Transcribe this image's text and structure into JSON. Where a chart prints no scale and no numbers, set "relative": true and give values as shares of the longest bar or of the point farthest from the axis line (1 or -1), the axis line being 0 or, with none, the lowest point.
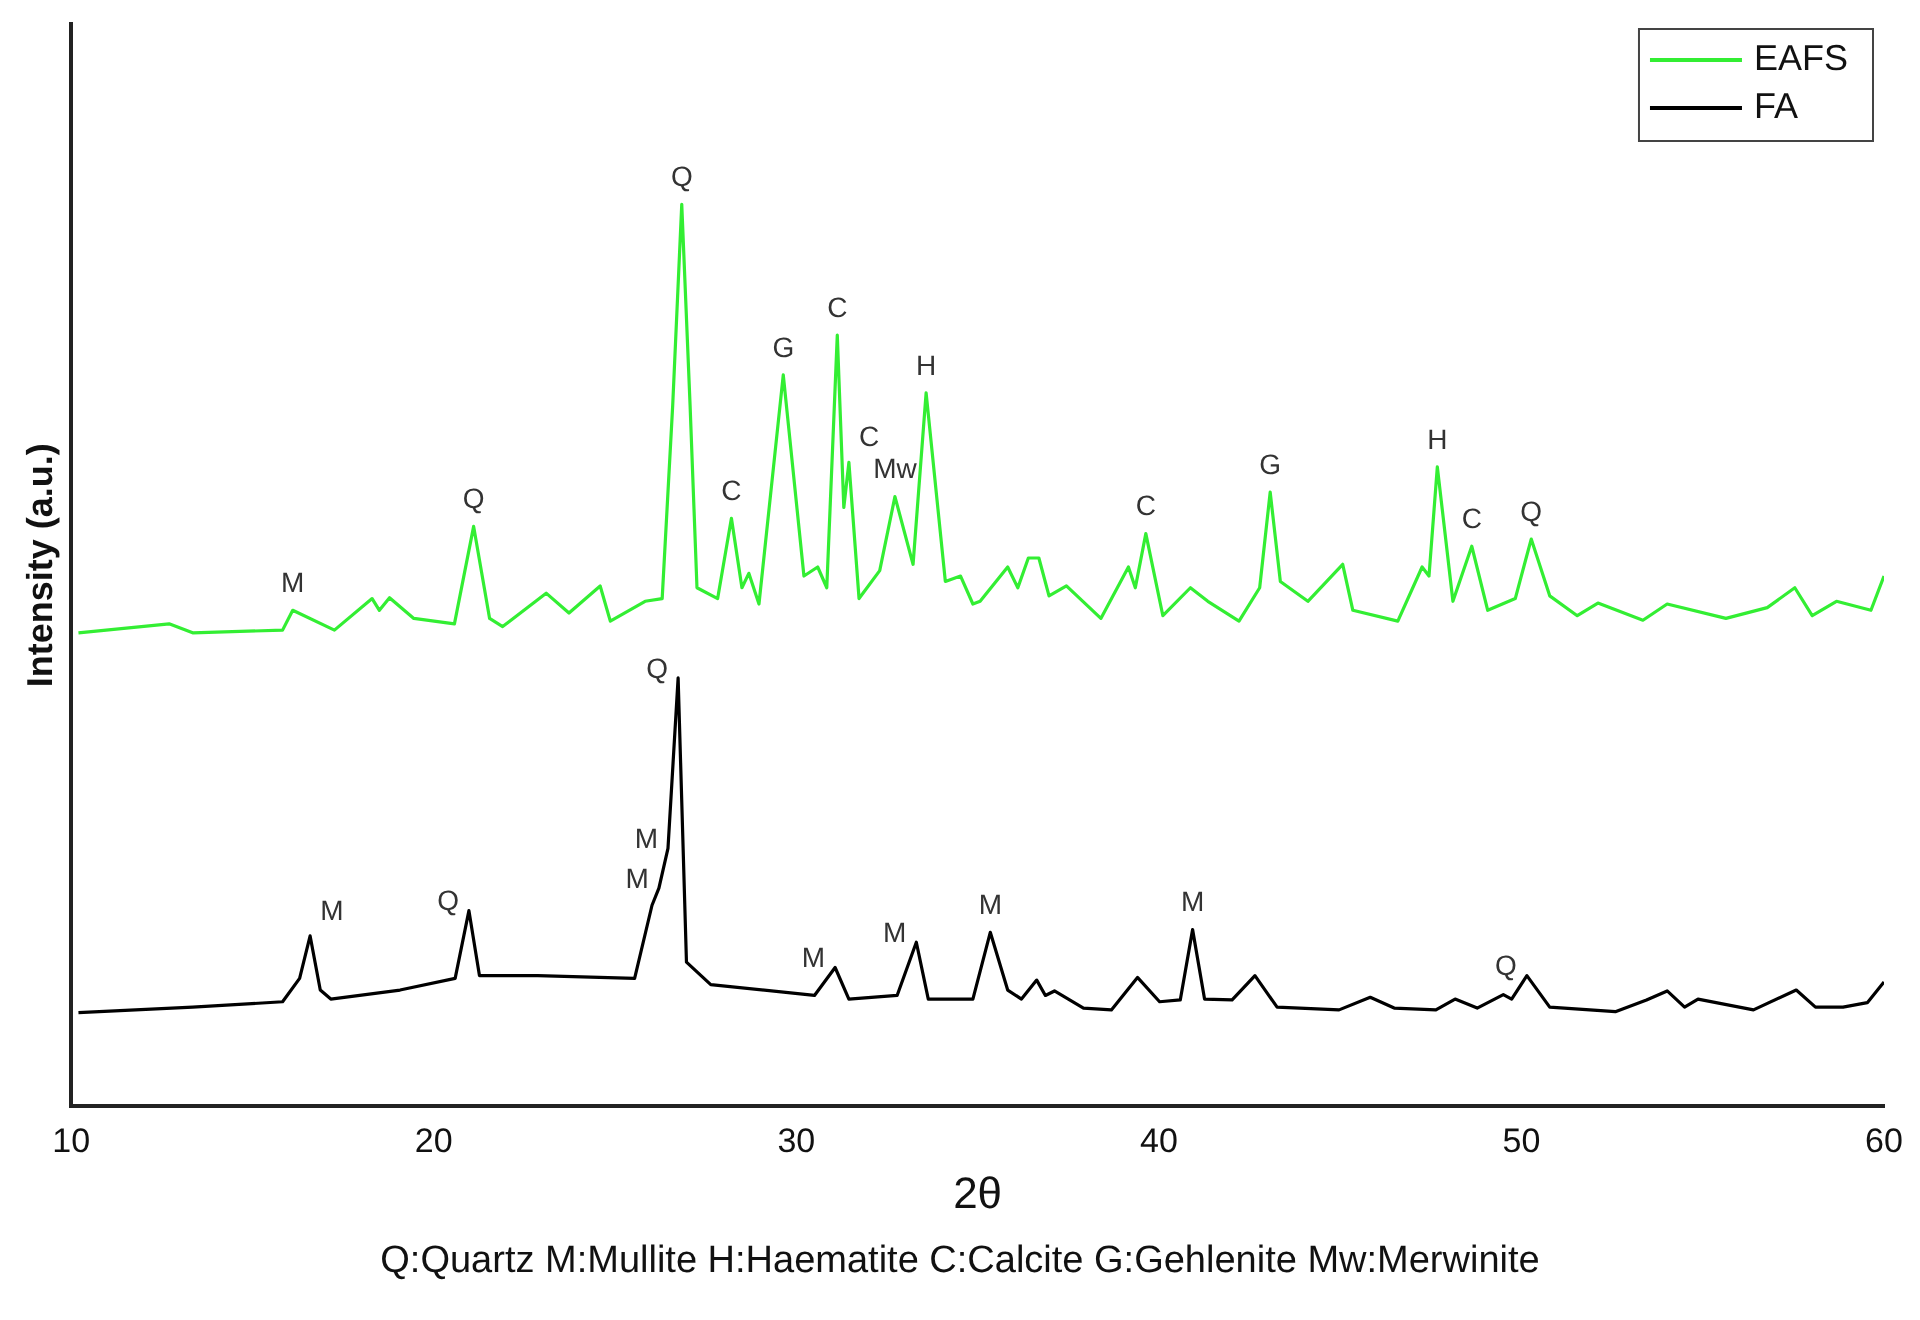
{
  "chart_data": {
    "type": "line",
    "relative": true,
    "xlabel": "2θ",
    "ylabel": "Intensity (a.u.)",
    "xlim": [
      10,
      60
    ],
    "xticks": [
      10,
      20,
      30,
      40,
      50,
      60
    ],
    "grid": false,
    "legend": "top right",
    "marker": "none",
    "line_style": "solid",
    "series": [
      {
        "name": "EAFS",
        "color": "#33ee33",
        "x": [
          10.2,
          12.7,
          13.35,
          15.83,
          16.11,
          17.26,
          18.3,
          18.5,
          18.78,
          19.45,
          20.57,
          21.1,
          21.54,
          21.9,
          23.1,
          23.73,
          24.59,
          24.87,
          25.83,
          26.3,
          26.59,
          26.84,
          27.07,
          27.26,
          27.83,
          28.21,
          28.5,
          28.69,
          28.97,
          29.64,
          30.21,
          30.59,
          30.84,
          31.13,
          31.31,
          31.45,
          31.73,
          32.3,
          32.72,
          33.22,
          33.58,
          34.11,
          34.53,
          34.87,
          35.07,
          35.83,
          36.11,
          36.4,
          36.69,
          36.97,
          37.45,
          38.4,
          39.16,
          39.35,
          39.64,
          40.11,
          40.87,
          41.35,
          42.21,
          42.78,
          43.07,
          43.35,
          44.11,
          45.07,
          45.35,
          46.59,
          47.26,
          47.45,
          47.68,
          48.11,
          48.63,
          49.07,
          49.83,
          50.27,
          50.78,
          51.54,
          52.11,
          53.35,
          54.02,
          55.64,
          56.78,
          57.54,
          58.02,
          58.69,
          59.64,
          60
        ],
        "values": [
          0.525,
          0.535,
          0.525,
          0.528,
          0.55,
          0.528,
          0.563,
          0.55,
          0.564,
          0.541,
          0.535,
          0.643,
          0.541,
          0.532,
          0.569,
          0.547,
          0.577,
          0.538,
          0.56,
          0.563,
          0.777,
          1,
          0.777,
          0.575,
          0.563,
          0.652,
          0.575,
          0.591,
          0.557,
          0.811,
          0.588,
          0.598,
          0.575,
          0.855,
          0.664,
          0.714,
          0.563,
          0.594,
          0.676,
          0.601,
          0.791,
          0.582,
          0.588,
          0.557,
          0.56,
          0.598,
          0.575,
          0.608,
          0.608,
          0.566,
          0.577,
          0.541,
          0.598,
          0.575,
          0.635,
          0.544,
          0.575,
          0.56,
          0.538,
          0.575,
          0.681,
          0.582,
          0.56,
          0.601,
          0.55,
          0.538,
          0.598,
          0.588,
          0.709,
          0.56,
          0.621,
          0.55,
          0.563,
          0.629,
          0.566,
          0.544,
          0.558,
          0.539,
          0.557,
          0.541,
          0.553,
          0.575,
          0.544,
          0.56,
          0.55,
          0.588
        ]
      },
      {
        "name": "FA",
        "color": "#000000",
        "x": [
          10.2,
          13.35,
          15.83,
          16.3,
          16.59,
          16.87,
          17.16,
          19.07,
          20.59,
          20.97,
          21.26,
          22.87,
          25.54,
          26.02,
          26.21,
          26.46,
          26.74,
          26.97,
          27.64,
          30.5,
          31.07,
          31.45,
          32.78,
          33.31,
          33.64,
          34.87,
          35.35,
          35.83,
          36.21,
          36.63,
          36.87,
          37.12,
          37.92,
          38.69,
          39.41,
          40.02,
          40.59,
          40.93,
          41.26,
          42.02,
          42.65,
          43.26,
          44.97,
          45.83,
          46.49,
          47.64,
          48.17,
          48.78,
          49.5,
          49.73,
          50.15,
          50.78,
          52.59,
          53.45,
          54.02,
          54.5,
          54.87,
          56.4,
          57.58,
          58.11,
          58.87,
          59.54,
          60
        ],
        "values": [
          0.104,
          0.11,
          0.116,
          0.142,
          0.189,
          0.129,
          0.119,
          0.129,
          0.142,
          0.217,
          0.145,
          0.145,
          0.142,
          0.223,
          0.242,
          0.286,
          0.475,
          0.16,
          0.135,
          0.123,
          0.154,
          0.119,
          0.123,
          0.182,
          0.119,
          0.119,
          0.193,
          0.129,
          0.119,
          0.14,
          0.123,
          0.128,
          0.109,
          0.107,
          0.143,
          0.116,
          0.118,
          0.196,
          0.119,
          0.118,
          0.145,
          0.11,
          0.107,
          0.121,
          0.109,
          0.107,
          0.119,
          0.109,
          0.124,
          0.119,
          0.145,
          0.11,
          0.105,
          0.118,
          0.128,
          0.11,
          0.119,
          0.107,
          0.129,
          0.11,
          0.11,
          0.115,
          0.138
        ]
      }
    ],
    "annotations": [
      {
        "text": "M",
        "x": 16.11,
        "y": 0.55
      },
      {
        "text": "Q",
        "x": 21.1,
        "y": 0.643
      },
      {
        "text": "Q",
        "x": 26.84,
        "y": 1
      },
      {
        "text": "C",
        "x": 28.21,
        "y": 0.652
      },
      {
        "text": "G",
        "x": 29.64,
        "y": 0.811
      },
      {
        "text": "C",
        "x": 31.13,
        "y": 0.855
      },
      {
        "text": "C",
        "x": 31.45,
        "y": 0.714
      },
      {
        "text": "Mw",
        "x": 32.72,
        "y": 0.676
      },
      {
        "text": "H",
        "x": 33.58,
        "y": 0.791
      },
      {
        "text": "C",
        "x": 39.64,
        "y": 0.635
      },
      {
        "text": "G",
        "x": 43.07,
        "y": 0.681
      },
      {
        "text": "H",
        "x": 47.68,
        "y": 0.709
      },
      {
        "text": "C",
        "x": 48.63,
        "y": 0.621
      },
      {
        "text": "Q",
        "x": 50.27,
        "y": 0.629
      },
      {
        "text": "M",
        "x": 16.59,
        "y": 0.189
      },
      {
        "text": "Q",
        "x": 20.97,
        "y": 0.217
      },
      {
        "text": "M",
        "x": 26.21,
        "y": 0.242
      },
      {
        "text": "M",
        "x": 26.46,
        "y": 0.286
      },
      {
        "text": "Q",
        "x": 26.74,
        "y": 0.475
      },
      {
        "text": "M",
        "x": 31.07,
        "y": 0.154
      },
      {
        "text": "M",
        "x": 33.31,
        "y": 0.182
      },
      {
        "text": "M",
        "x": 35.35,
        "y": 0.193
      },
      {
        "text": "M",
        "x": 40.93,
        "y": 0.196
      },
      {
        "text": "Q",
        "x": 50.15,
        "y": 0.145
      },
      "Q:Quartz M:Mullite H:Haematite C:Calcite G:Gehlenite Mw:Merwinite"
    ]
  }
}
